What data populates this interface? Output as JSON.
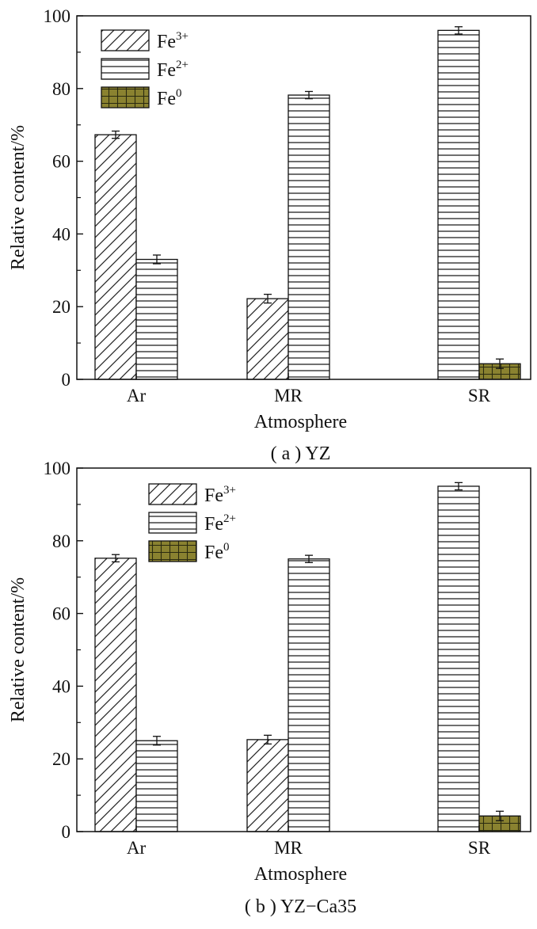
{
  "chart_data": [
    {
      "type": "bar",
      "caption": "( a ) YZ",
      "xlabel": "Atmosphere",
      "ylabel": "Relative content/%",
      "ylim": [
        0,
        100
      ],
      "yticks": [
        0,
        20,
        40,
        60,
        80,
        100
      ],
      "categories": [
        "Ar",
        "MR",
        "SR"
      ],
      "legend_placement": "top-left",
      "error_bars": true,
      "series": [
        {
          "name": "Fe",
          "sup": "3+",
          "pattern": "diagonal-hatch",
          "values": [
            67.3,
            22.2,
            null
          ],
          "errors": [
            1.0,
            1.2,
            null
          ]
        },
        {
          "name": "Fe",
          "sup": "2+",
          "pattern": "horizontal-lines",
          "values": [
            33.0,
            78.2,
            96.0
          ],
          "errors": [
            1.2,
            1.0,
            1.0
          ]
        },
        {
          "name": "Fe",
          "sup": "0",
          "pattern": "grid",
          "color": "#8a8230",
          "values": [
            null,
            null,
            4.3
          ],
          "errors": [
            null,
            null,
            1.3
          ]
        }
      ]
    },
    {
      "type": "bar",
      "caption": "( b ) YZ−Ca35",
      "xlabel": "Atmosphere",
      "ylabel": "Relative content/%",
      "ylim": [
        0,
        100
      ],
      "yticks": [
        0,
        20,
        40,
        60,
        80,
        100
      ],
      "categories": [
        "Ar",
        "MR",
        "SR"
      ],
      "legend_placement": "top-center",
      "error_bars": true,
      "series": [
        {
          "name": "Fe",
          "sup": "3+",
          "pattern": "diagonal-hatch",
          "values": [
            75.2,
            25.3,
            null
          ],
          "errors": [
            1.0,
            1.2,
            null
          ]
        },
        {
          "name": "Fe",
          "sup": "2+",
          "pattern": "horizontal-lines",
          "values": [
            25.0,
            75.0,
            95.0
          ],
          "errors": [
            1.2,
            1.0,
            1.0
          ]
        },
        {
          "name": "Fe",
          "sup": "0",
          "pattern": "grid",
          "color": "#8a8230",
          "values": [
            null,
            null,
            4.3
          ],
          "errors": [
            null,
            null,
            1.3
          ]
        }
      ]
    }
  ]
}
